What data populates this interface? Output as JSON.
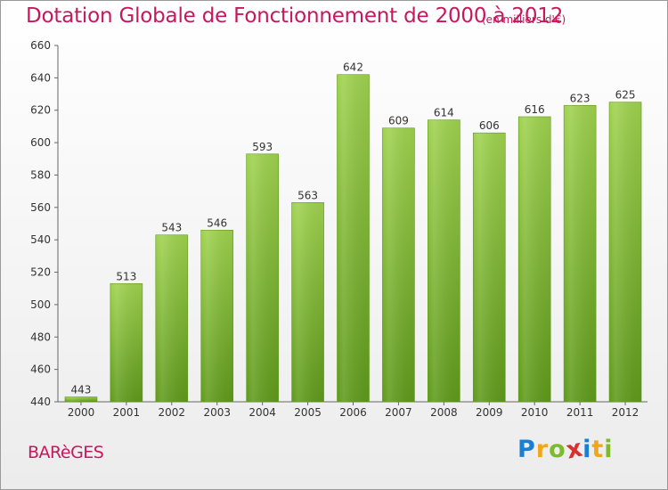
{
  "chart_data": {
    "type": "bar",
    "title": "Dotation Globale de Fonctionnement de 2000 à 2012",
    "subtitle": "(en milliers d'€)",
    "categories": [
      "2000",
      "2001",
      "2002",
      "2003",
      "2004",
      "2005",
      "2006",
      "2007",
      "2008",
      "2009",
      "2010",
      "2011",
      "2012"
    ],
    "values": [
      443,
      513,
      543,
      546,
      593,
      563,
      642,
      609,
      614,
      606,
      616,
      623,
      625
    ],
    "ylim": [
      440,
      660
    ],
    "yticks": [
      440,
      460,
      480,
      500,
      520,
      540,
      560,
      580,
      600,
      620,
      640,
      660
    ],
    "xlabel": "",
    "ylabel": "",
    "grid": false,
    "colors": {
      "bar": "#7dba2f",
      "bar_light": "#9fd24e",
      "bar_dark": "#5f9a1b",
      "title": "#c8175d"
    }
  },
  "place_name": "BARèGES",
  "brand": {
    "letters": [
      "P",
      "r",
      "o",
      "x",
      "i",
      "t",
      "i"
    ],
    "colors": [
      "#1a7fd1",
      "#f0a81a",
      "#7dba2f",
      "#d9302f",
      "#1a7fd1",
      "#f0a81a",
      "#7dba2f"
    ]
  }
}
